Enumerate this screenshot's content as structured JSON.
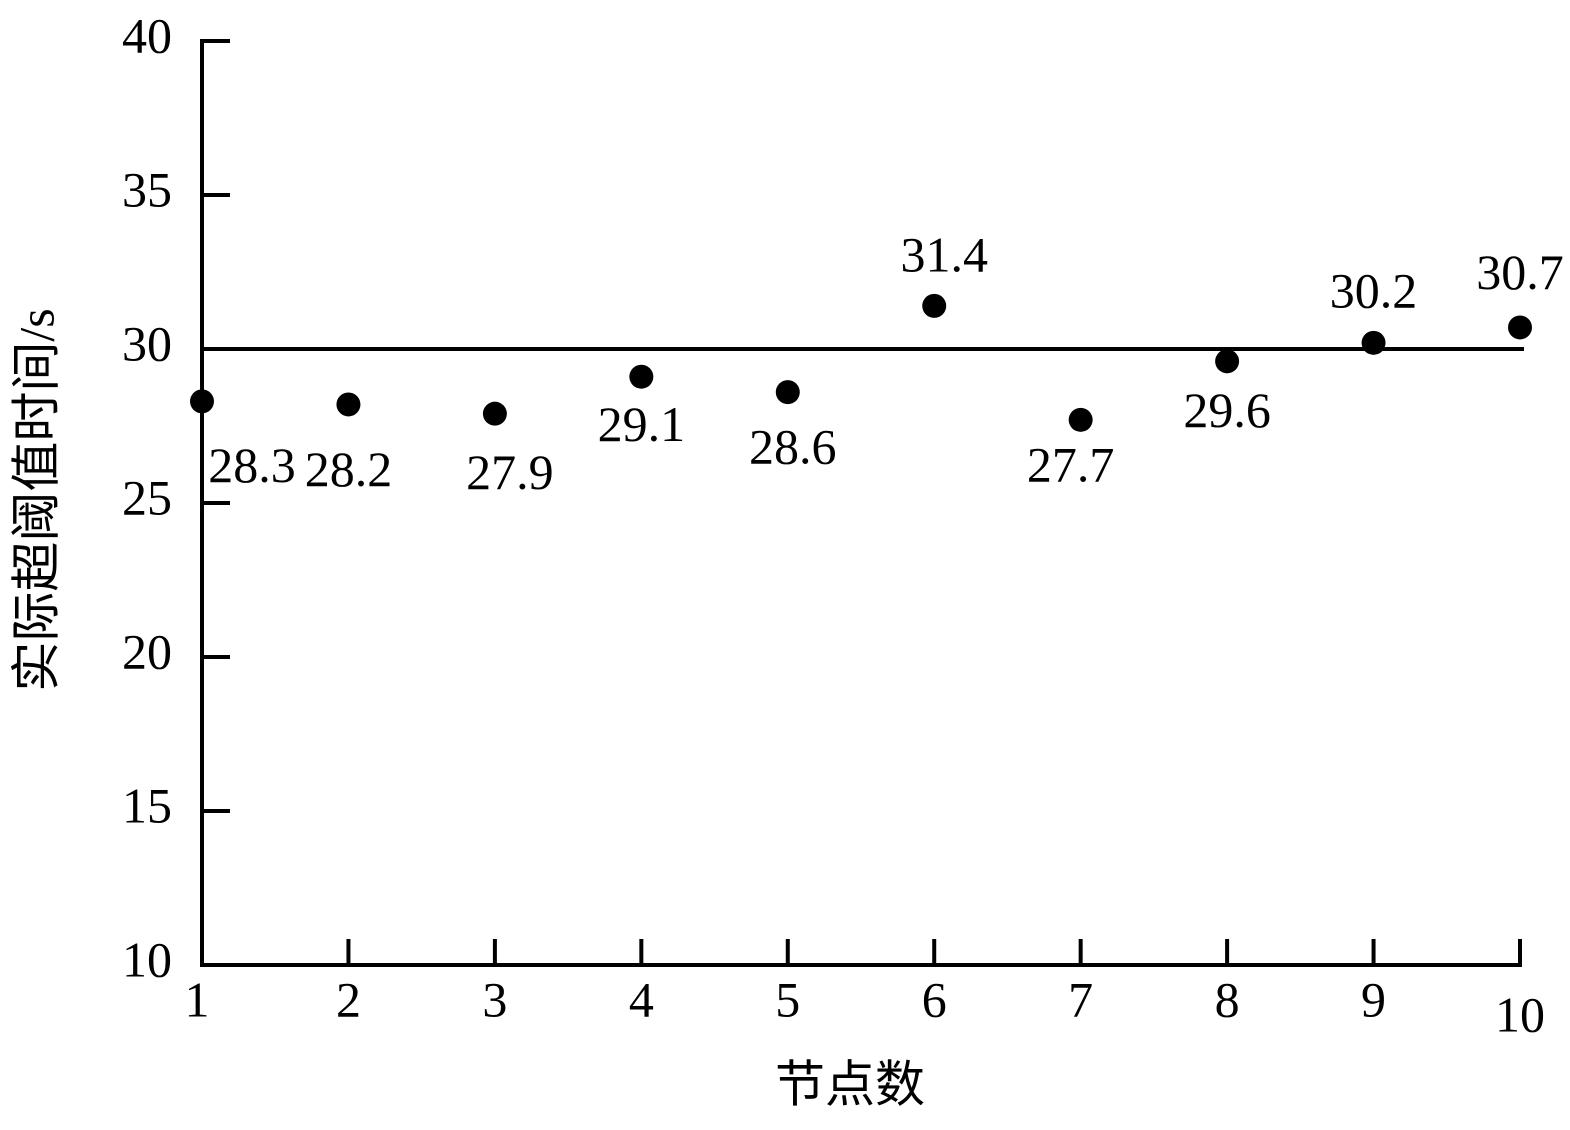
{
  "chart_data": {
    "type": "scatter",
    "x_label": "节点数",
    "y_label": "实际超阈值时间/s",
    "x": [
      1,
      2,
      3,
      4,
      5,
      6,
      7,
      8,
      9,
      10
    ],
    "values": [
      28.3,
      28.2,
      27.9,
      29.1,
      28.6,
      31.4,
      27.7,
      29.6,
      30.2,
      30.7
    ],
    "color": "#000000",
    "reference_line": 30,
    "xlim": [
      1,
      10
    ],
    "xticks": [
      1,
      2,
      3,
      4,
      5,
      6,
      7,
      8,
      9,
      10
    ],
    "ylim": [
      10,
      40
    ],
    "yticks": [
      10,
      15,
      20,
      25,
      30,
      35,
      40
    ],
    "grid": false
  }
}
